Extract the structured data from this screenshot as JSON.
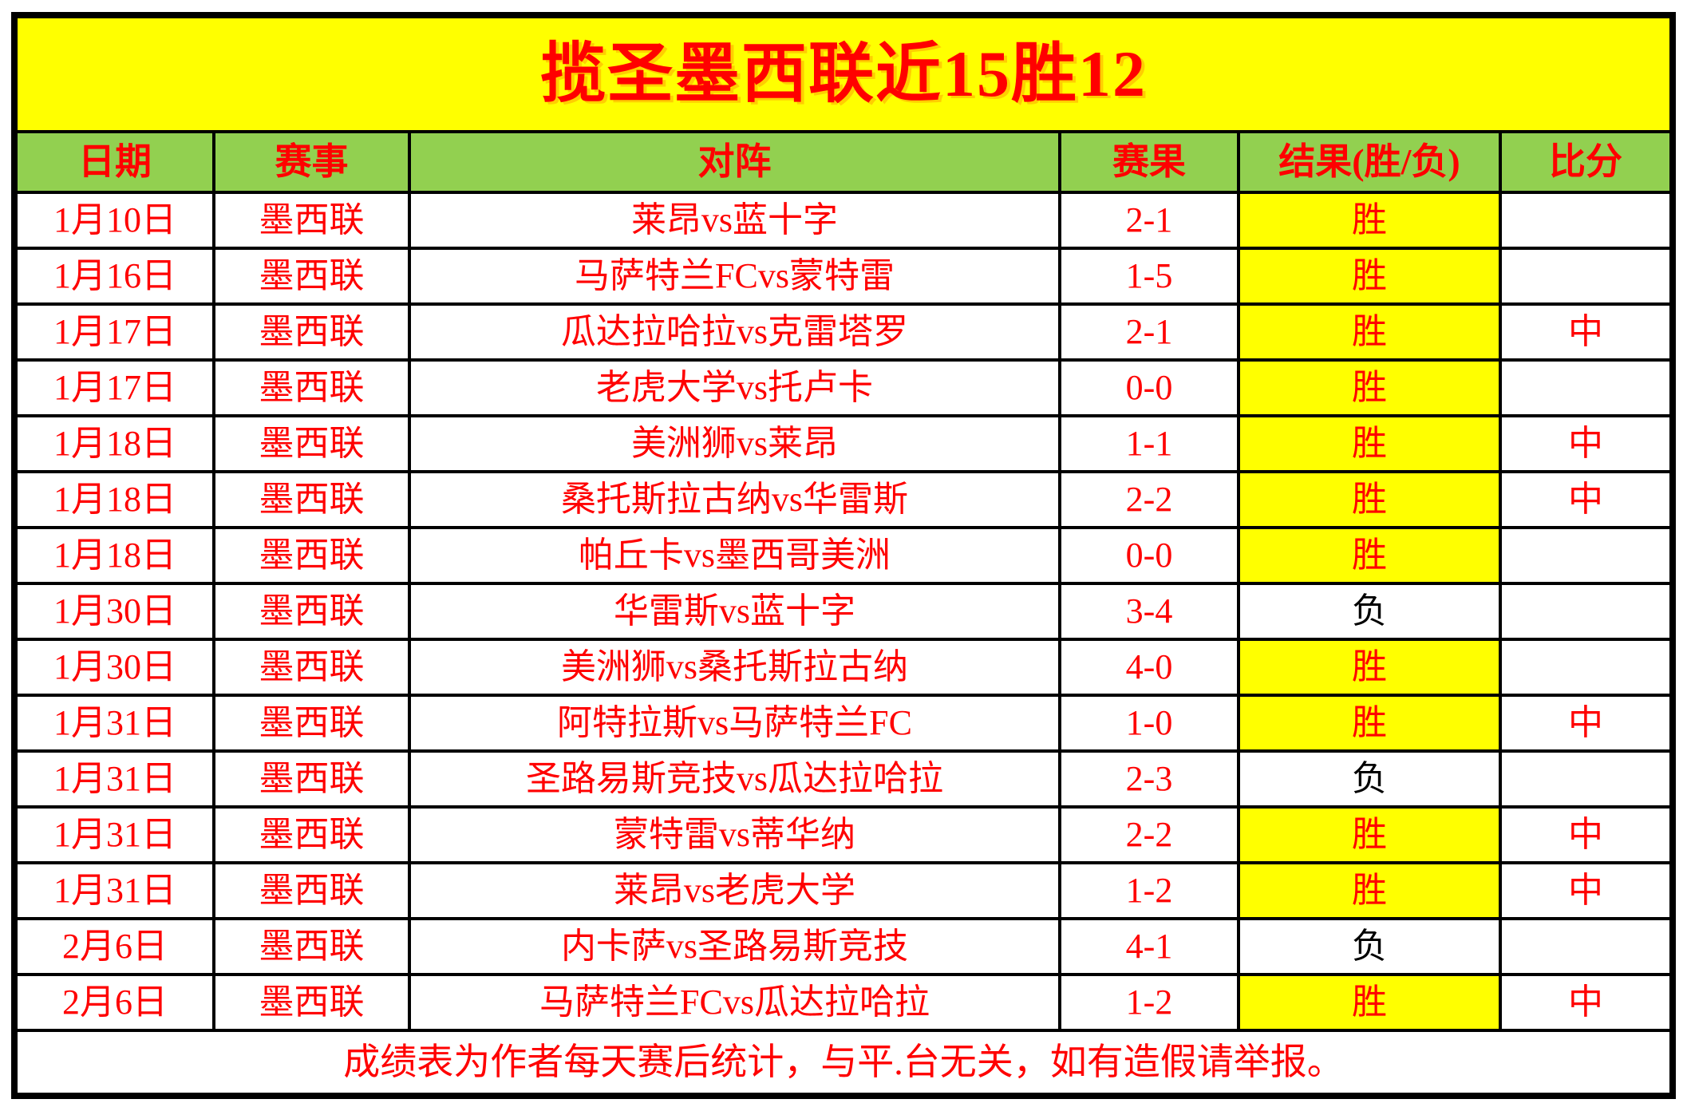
{
  "title": "揽圣墨西联近15胜12",
  "table": {
    "columns": [
      {
        "key": "date",
        "label": "日期"
      },
      {
        "key": "league",
        "label": "赛事"
      },
      {
        "key": "match",
        "label": "对阵"
      },
      {
        "key": "score",
        "label": "赛果"
      },
      {
        "key": "result",
        "label": "结果(胜/负)"
      },
      {
        "key": "hit",
        "label": "比分"
      }
    ],
    "rows": [
      {
        "date": "1月10日",
        "league": "墨西联",
        "match": "莱昂vs蓝十字",
        "score": "2-1",
        "result": "胜",
        "win": true,
        "hit": ""
      },
      {
        "date": "1月16日",
        "league": "墨西联",
        "match": "马萨特兰FCvs蒙特雷",
        "score": "1-5",
        "result": "胜",
        "win": true,
        "hit": ""
      },
      {
        "date": "1月17日",
        "league": "墨西联",
        "match": "瓜达拉哈拉vs克雷塔罗",
        "score": "2-1",
        "result": "胜",
        "win": true,
        "hit": "中"
      },
      {
        "date": "1月17日",
        "league": "墨西联",
        "match": "老虎大学vs托卢卡",
        "score": "0-0",
        "result": "胜",
        "win": true,
        "hit": ""
      },
      {
        "date": "1月18日",
        "league": "墨西联",
        "match": "美洲狮vs莱昂",
        "score": "1-1",
        "result": "胜",
        "win": true,
        "hit": "中"
      },
      {
        "date": "1月18日",
        "league": "墨西联",
        "match": "桑托斯拉古纳vs华雷斯",
        "score": "2-2",
        "result": "胜",
        "win": true,
        "hit": "中"
      },
      {
        "date": "1月18日",
        "league": "墨西联",
        "match": "帕丘卡vs墨西哥美洲",
        "score": "0-0",
        "result": "胜",
        "win": true,
        "hit": ""
      },
      {
        "date": "1月30日",
        "league": "墨西联",
        "match": "华雷斯vs蓝十字",
        "score": "3-4",
        "result": "负",
        "win": false,
        "hit": ""
      },
      {
        "date": "1月30日",
        "league": "墨西联",
        "match": "美洲狮vs桑托斯拉古纳",
        "score": "4-0",
        "result": "胜",
        "win": true,
        "hit": ""
      },
      {
        "date": "1月31日",
        "league": "墨西联",
        "match": "阿特拉斯vs马萨特兰FC",
        "score": "1-0",
        "result": "胜",
        "win": true,
        "hit": "中"
      },
      {
        "date": "1月31日",
        "league": "墨西联",
        "match": "圣路易斯竞技vs瓜达拉哈拉",
        "score": "2-3",
        "result": "负",
        "win": false,
        "hit": ""
      },
      {
        "date": "1月31日",
        "league": "墨西联",
        "match": "蒙特雷vs蒂华纳",
        "score": "2-2",
        "result": "胜",
        "win": true,
        "hit": "中"
      },
      {
        "date": "1月31日",
        "league": "墨西联",
        "match": "莱昂vs老虎大学",
        "score": "1-2",
        "result": "胜",
        "win": true,
        "hit": "中"
      },
      {
        "date": "2月6日",
        "league": "墨西联",
        "match": "内卡萨vs圣路易斯竞技",
        "score": "4-1",
        "result": "负",
        "win": false,
        "hit": ""
      },
      {
        "date": "2月6日",
        "league": "墨西联",
        "match": "马萨特兰FCvs瓜达拉哈拉",
        "score": "1-2",
        "result": "胜",
        "win": true,
        "hit": "中"
      }
    ]
  },
  "footer": {
    "note": "成绩表为作者每天赛后统计，与平.台无关，如有造假请举报。"
  },
  "colors": {
    "banner_bg": "#FFFF00",
    "header_bg": "#92D050",
    "win_bg": "#FFFF00",
    "text_red": "#FF0000",
    "loss_text": "#000000",
    "border": "#000000",
    "page_bg": "#FFFFFF"
  }
}
